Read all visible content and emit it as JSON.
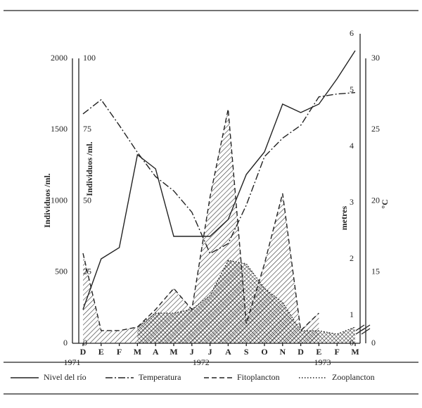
{
  "chart_data": {
    "type": "line",
    "categories": [
      "D",
      "E",
      "F",
      "M",
      "A",
      "M",
      "J",
      "J",
      "A",
      "S",
      "O",
      "N",
      "D",
      "E",
      "F",
      "M"
    ],
    "year_labels": [
      "1971",
      "1972",
      "1973"
    ],
    "axes": [
      {
        "label": "Individuos /ml.",
        "ylim": [
          0,
          2000
        ],
        "yticks": [
          0,
          500,
          1000,
          1500,
          2000
        ]
      },
      {
        "label": "Individuos /ml.",
        "ylim": [
          0,
          100
        ],
        "yticks": [
          0,
          25,
          50,
          75,
          100
        ]
      },
      {
        "label": "metres",
        "ylim": [
          0.5,
          6
        ],
        "yticks": [
          1,
          2,
          3,
          4,
          5,
          6
        ],
        "break_label": "0"
      },
      {
        "label": "°C",
        "ylim": [
          10,
          30
        ],
        "yticks": [
          15,
          20,
          25,
          30
        ],
        "break_label": "0"
      }
    ],
    "series": [
      {
        "name": "Nivel del río",
        "style": "solid",
        "color": "#222222",
        "axis": 2,
        "values": [
          1.1,
          2.0,
          2.2,
          3.85,
          3.6,
          2.4,
          2.4,
          2.4,
          2.7,
          3.5,
          3.9,
          4.75,
          4.6,
          4.75,
          5.2,
          5.7
        ]
      },
      {
        "name": "Temperatura",
        "style": "dashdot",
        "color": "#222222",
        "axis": 3,
        "values": [
          26.1,
          27.1,
          25.3,
          23.4,
          21.7,
          20.7,
          19.2,
          16.3,
          17.0,
          19.7,
          23.1,
          24.4,
          25.3,
          27.3,
          27.5,
          27.6
        ]
      },
      {
        "name": "Fitoplancton",
        "style": "dashed",
        "color": "#222222",
        "axis": 0,
        "fill": "hatch",
        "values": [
          632,
          89,
          89,
          114,
          237,
          385,
          237,
          1027,
          1644,
          138,
          558,
          1052,
          89,
          212,
          null,
          null
        ]
      },
      {
        "name": "Zooplancton",
        "style": "dotted",
        "color": "#222222",
        "axis": 1,
        "fill": "crosshatch",
        "values": [
          null,
          null,
          null,
          5.7,
          10.6,
          10.6,
          11.9,
          16.8,
          29.1,
          27.9,
          19.3,
          14.3,
          4.4,
          4.4,
          3.2,
          5.7
        ]
      }
    ]
  }
}
